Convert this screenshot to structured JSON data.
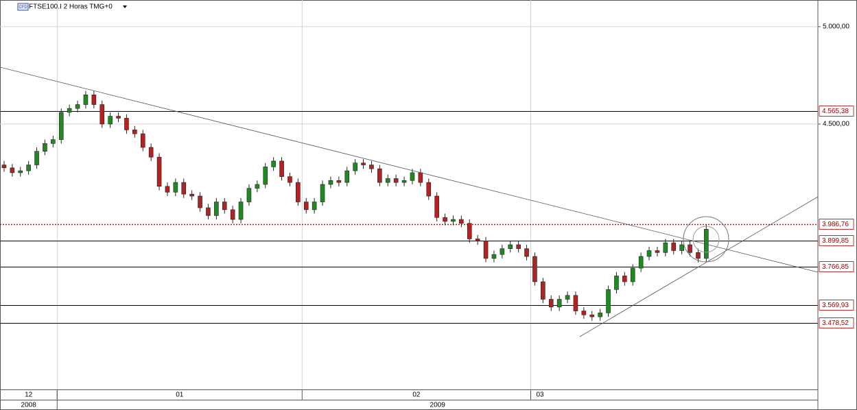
{
  "chart_data": {
    "type": "candlestick",
    "title": "FTSE100.I 2 Horas TMG+0",
    "symbol_badge": "CFD",
    "categories": [
      "12",
      null,
      null,
      null,
      null,
      null,
      null,
      "01",
      null,
      null,
      null,
      null,
      null,
      null,
      null,
      null,
      null,
      null,
      null,
      null,
      null,
      null,
      null,
      null,
      null,
      null,
      null,
      null,
      null,
      null,
      null,
      null,
      null,
      null,
      null,
      null,
      null,
      "02",
      null,
      null,
      null,
      null,
      null,
      null,
      null,
      null,
      null,
      null,
      null,
      null,
      null,
      null,
      null,
      null,
      null,
      null,
      null,
      null,
      null,
      null,
      null,
      null,
      null,
      null,
      null,
      "03",
      null,
      null,
      null,
      null,
      null,
      null,
      null,
      null,
      null,
      null,
      null,
      null,
      null,
      null,
      null,
      null,
      null,
      null,
      null,
      null,
      null
    ],
    "years": [
      "2008",
      null,
      null,
      null,
      null,
      null,
      null,
      "2009",
      null,
      null,
      null,
      null,
      null,
      null,
      null,
      null,
      null,
      null,
      null,
      null,
      null,
      null,
      null,
      null,
      null,
      null,
      null,
      null,
      null,
      null,
      null,
      null,
      null,
      null,
      null,
      null,
      null,
      null,
      null,
      null,
      null,
      null,
      null,
      null,
      null,
      null,
      null,
      null,
      null,
      null,
      null,
      null,
      null,
      null,
      null,
      null,
      null,
      null,
      null,
      null,
      null,
      null,
      null,
      null,
      null,
      null,
      null,
      null,
      null,
      null,
      null,
      null,
      null,
      null,
      null,
      null,
      null,
      null,
      null,
      null,
      null,
      null,
      null,
      null,
      null,
      null,
      null
    ],
    "open": [
      4290,
      4275,
      4250,
      4260,
      4290,
      4360,
      4400,
      4420,
      4560,
      4580,
      4600,
      4650,
      4600,
      4500,
      4540,
      4530,
      4470,
      4450,
      4380,
      4330,
      4180,
      4150,
      4200,
      4140,
      4130,
      4070,
      4030,
      4100,
      4060,
      4010,
      4100,
      4170,
      4190,
      4280,
      4310,
      4230,
      4200,
      4100,
      4060,
      4100,
      4190,
      4210,
      4200,
      4260,
      4300,
      4290,
      4270,
      4200,
      4220,
      4200,
      4210,
      4250,
      4200,
      4130,
      4020,
      4000,
      4010,
      3990,
      3910,
      3900,
      3810,
      3830,
      3860,
      3880,
      3860,
      3820,
      3690,
      3600,
      3560,
      3600,
      3620,
      3540,
      3520,
      3510,
      3530,
      3650,
      3720,
      3690,
      3760,
      3820,
      3850,
      3840,
      3890,
      3850,
      3880,
      3840,
      3810
    ],
    "high": [
      4310,
      4295,
      4280,
      4310,
      4380,
      4420,
      4440,
      4580,
      4600,
      4620,
      4670,
      4670,
      4620,
      4560,
      4560,
      4550,
      4490,
      4470,
      4400,
      4350,
      4200,
      4220,
      4220,
      4160,
      4150,
      4090,
      4120,
      4120,
      4080,
      4120,
      4190,
      4210,
      4300,
      4330,
      4330,
      4250,
      4220,
      4120,
      4120,
      4210,
      4230,
      4230,
      4280,
      4320,
      4320,
      4310,
      4290,
      4240,
      4240,
      4230,
      4270,
      4270,
      4220,
      4150,
      4040,
      4030,
      4030,
      4010,
      3930,
      3920,
      3850,
      3880,
      3900,
      3900,
      3880,
      3840,
      3710,
      3620,
      3620,
      3640,
      3640,
      3560,
      3540,
      3550,
      3670,
      3740,
      3740,
      3780,
      3840,
      3870,
      3870,
      3910,
      3910,
      3900,
      3900,
      3860,
      3985
    ],
    "low": [
      4255,
      4230,
      4230,
      4240,
      4270,
      4340,
      4380,
      4400,
      4540,
      4560,
      4580,
      4580,
      4480,
      4480,
      4510,
      4450,
      4430,
      4360,
      4310,
      4160,
      4130,
      4130,
      4120,
      4110,
      4050,
      4010,
      4010,
      4040,
      3990,
      3990,
      4080,
      4150,
      4170,
      4260,
      4210,
      4180,
      4080,
      4040,
      4040,
      4080,
      4170,
      4180,
      4180,
      4240,
      4270,
      4250,
      4180,
      4180,
      4180,
      4180,
      4190,
      4180,
      4110,
      4000,
      3980,
      3980,
      3970,
      3890,
      3880,
      3790,
      3790,
      3810,
      3840,
      3840,
      3800,
      3670,
      3580,
      3540,
      3540,
      3580,
      3520,
      3500,
      3490,
      3490,
      3510,
      3630,
      3670,
      3670,
      3740,
      3800,
      3820,
      3820,
      3830,
      3830,
      3820,
      3790,
      3790
    ],
    "close": [
      4275,
      4250,
      4260,
      4290,
      4360,
      4400,
      4420,
      4560,
      4580,
      4600,
      4650,
      4600,
      4500,
      4540,
      4530,
      4470,
      4450,
      4380,
      4330,
      4180,
      4150,
      4200,
      4140,
      4130,
      4070,
      4030,
      4100,
      4060,
      4010,
      4100,
      4170,
      4190,
      4280,
      4310,
      4230,
      4200,
      4100,
      4060,
      4100,
      4190,
      4210,
      4200,
      4260,
      4300,
      4290,
      4270,
      4200,
      4220,
      4200,
      4210,
      4250,
      4200,
      4130,
      4020,
      4000,
      4010,
      3990,
      3910,
      3900,
      3810,
      3830,
      3860,
      3880,
      3860,
      3820,
      3690,
      3600,
      3560,
      3600,
      3620,
      3540,
      3520,
      3510,
      3530,
      3650,
      3720,
      3690,
      3760,
      3820,
      3850,
      3840,
      3890,
      3850,
      3880,
      3840,
      3810,
      3960
    ],
    "up_color": "#1f8a1f",
    "down_color": "#b22222",
    "ylim": [
      3137,
      5137
    ],
    "yticks": [
      {
        "value": 5000,
        "label": "5.000,00"
      },
      {
        "value": 4500,
        "label": "4.500,00"
      }
    ],
    "levels": [
      {
        "value": 4565.38,
        "label": "4.565,38",
        "color": "#000000",
        "dotted": false
      },
      {
        "value": 3986.76,
        "label": "3.986,76",
        "color": "#e00000",
        "dotted": true
      },
      {
        "value": 3899.85,
        "label": "3.899,85",
        "color": "#000000",
        "dotted": false
      },
      {
        "value": 3766.85,
        "label": "3.766,85",
        "color": "#000000",
        "dotted": false
      },
      {
        "value": 3569.93,
        "label": "3.569,93",
        "color": "#000000",
        "dotted": false
      },
      {
        "value": 3478.52,
        "label": "3.478,52",
        "color": "#000000",
        "dotted": false
      }
    ],
    "grid": true
  }
}
